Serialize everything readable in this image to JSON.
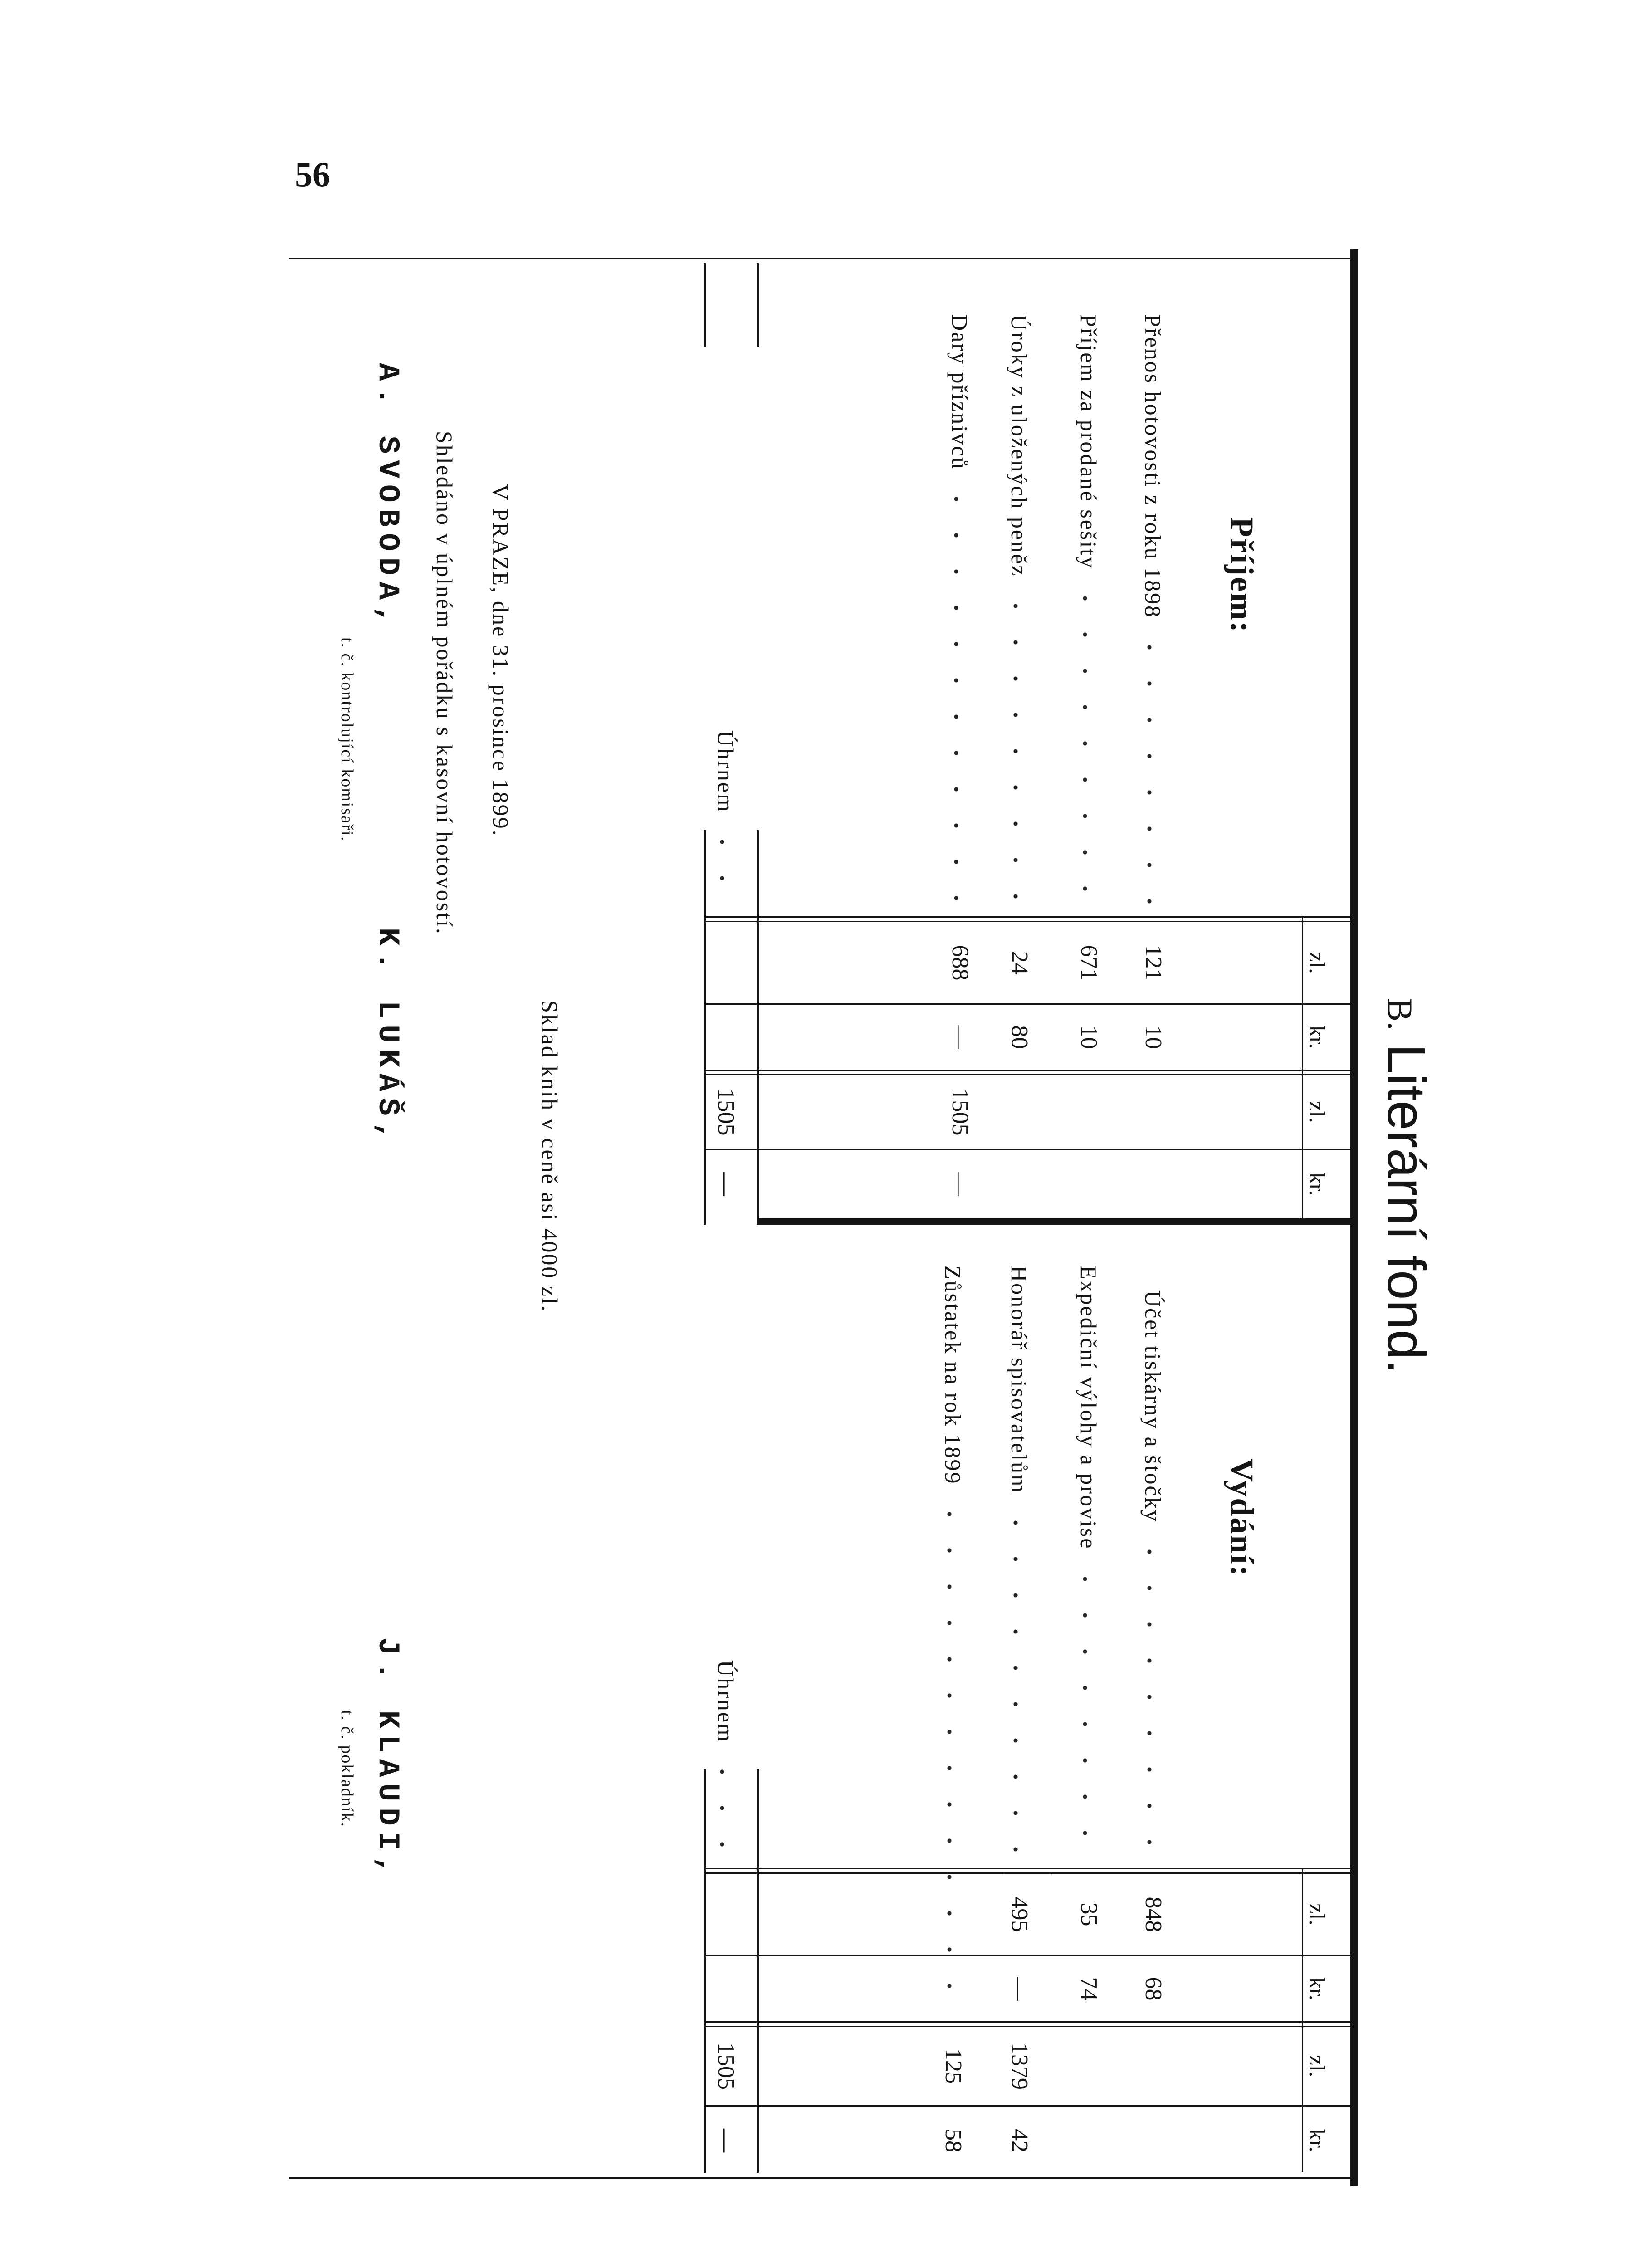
{
  "page_number": "56",
  "title": {
    "prefix": "B.",
    "text": "Literární fond."
  },
  "columns": [
    "zl.",
    "kr.",
    "zl.",
    "kr."
  ],
  "income": {
    "heading": "Příjem:",
    "rows": [
      {
        "label": "Přenos hotovosti z roku 1898",
        "zl": "121",
        "kr": "10",
        "total_zl": "",
        "total_kr": ""
      },
      {
        "label": "Příjem za prodané sešity",
        "zl": "671",
        "kr": "10",
        "total_zl": "",
        "total_kr": ""
      },
      {
        "label": "Úroky z uložených peněz",
        "zl": "24",
        "kr": "80",
        "total_zl": "",
        "total_kr": ""
      },
      {
        "label": "Dary příznivců",
        "zl": "688",
        "kr": "—",
        "total_zl": "1505",
        "total_kr": "—"
      }
    ],
    "total": {
      "label": "Úhrnem",
      "zl": "1505",
      "kr": "—"
    }
  },
  "expenses": {
    "heading": "Vydání:",
    "rows": [
      {
        "label": "Účet tiskárny a štočky",
        "zl": "848",
        "kr": "68",
        "total_zl": "",
        "total_kr": ""
      },
      {
        "label": "Expediční výlohy a provise",
        "zl": "35",
        "kr": "74",
        "total_zl": "",
        "total_kr": ""
      },
      {
        "label": "Honorář spisovatelům",
        "zl": "495",
        "kr": "—",
        "total_zl": "1379",
        "total_kr": "42"
      },
      {
        "label": "Zůstatek na rok 1899",
        "zl": "",
        "kr": "",
        "total_zl": "125",
        "total_kr": "58"
      }
    ],
    "total": {
      "label": "Úhrnem",
      "zl": "1505",
      "kr": "—"
    }
  },
  "stock_note": "Sklad knih v ceně asi 4000 zl.",
  "place_date": "V PRAZE, dne 31. prosince 1899.",
  "verification": "Shledáno v úplném pořádku s kasovní hotovostí.",
  "signatures": [
    {
      "name": "A. SVOBODA,",
      "role": "t. č. kontrolující komisaři."
    },
    {
      "name": "K. LUKÁŠ,"
    },
    {
      "name": "J. KLAUDI,",
      "role": "t. č. pokladník."
    }
  ]
}
